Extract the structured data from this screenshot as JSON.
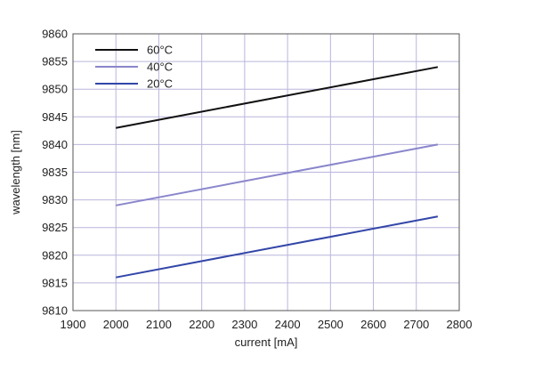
{
  "chart_data": {
    "type": "line",
    "title": "",
    "xlabel": "current [mA]",
    "ylabel": "wavelength [nm]",
    "xlim": [
      1900,
      2800
    ],
    "ylim": [
      9810,
      9860
    ],
    "x_ticks": [
      1900,
      2000,
      2100,
      2200,
      2300,
      2400,
      2500,
      2600,
      2700,
      2800
    ],
    "y_ticks": [
      9810,
      9815,
      9820,
      9825,
      9830,
      9835,
      9840,
      9845,
      9850,
      9855,
      9860
    ],
    "grid": true,
    "legend_position": "top-left",
    "series": [
      {
        "name": "60°C",
        "color": "#111111",
        "x": [
          2000,
          2750
        ],
        "y": [
          9843,
          9854
        ]
      },
      {
        "name": "40°C",
        "color": "#8a86cc",
        "x": [
          2000,
          2750
        ],
        "y": [
          9829,
          9840
        ]
      },
      {
        "name": "20°C",
        "color": "#3346a8",
        "x": [
          2000,
          2750
        ],
        "y": [
          9816,
          9827
        ]
      }
    ]
  },
  "colors": {
    "grid": "#b9b6dc",
    "frame": "#555555",
    "background": "#ffffff"
  }
}
